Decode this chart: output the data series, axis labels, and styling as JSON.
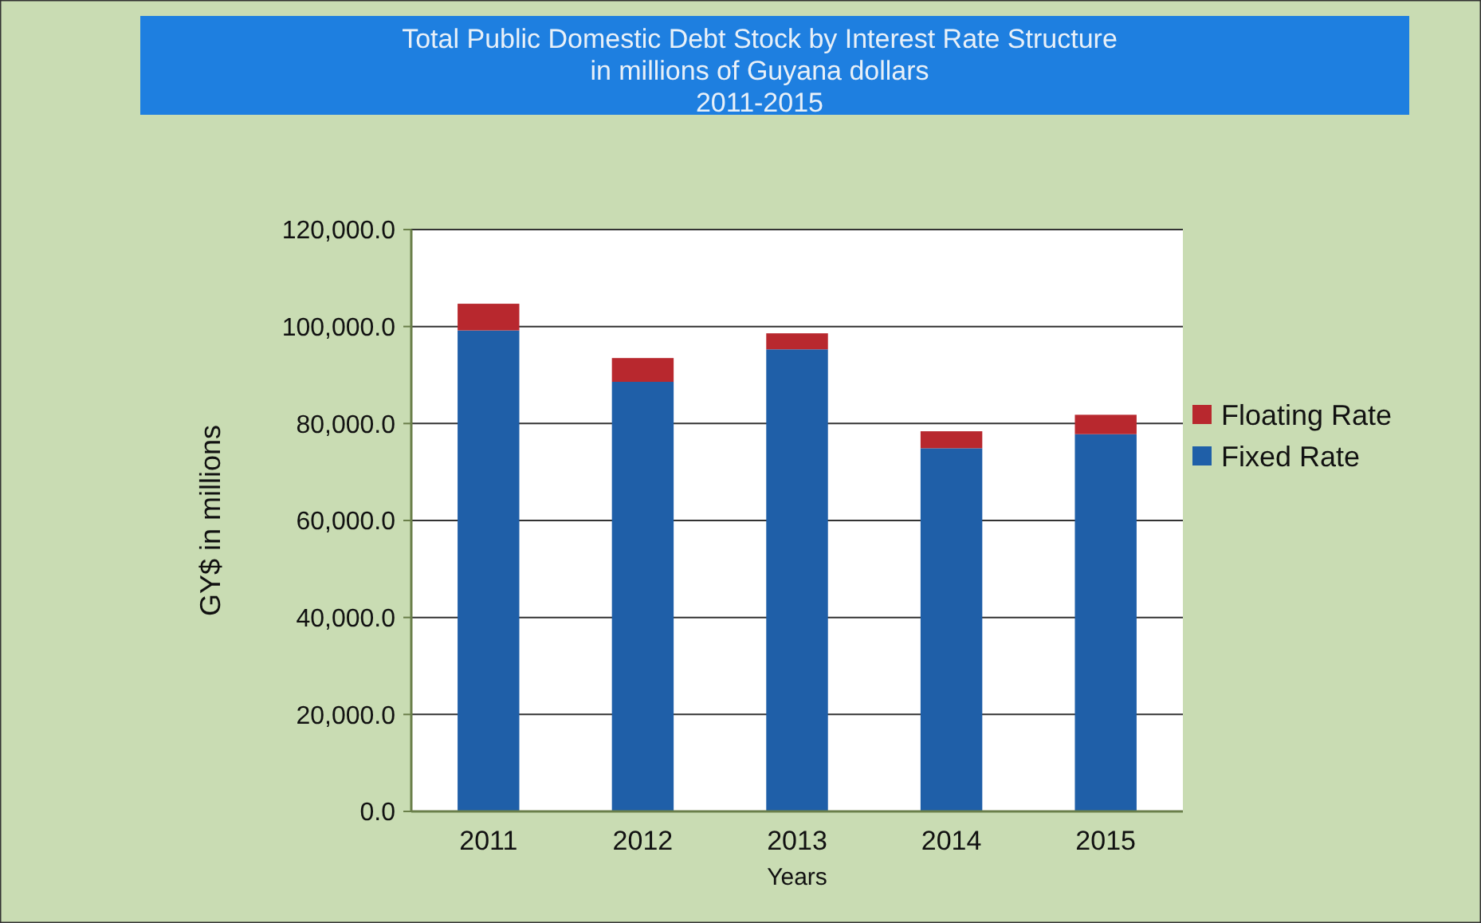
{
  "chart_data": {
    "type": "bar",
    "title": "Total Public Domestic Debt Stock by Interest Rate Structure\nin millions of Guyana dollars\n2011-2015",
    "xlabel": "Years",
    "ylabel": "GY$ in millions",
    "categories": [
      "2011",
      "2012",
      "2013",
      "2014",
      "2015"
    ],
    "stacked": true,
    "series": [
      {
        "name": "Fixed Rate",
        "color": "#1f5fa8",
        "values": [
          99200,
          88600,
          95300,
          74900,
          77800
        ]
      },
      {
        "name": "Floating Rate",
        "color": "#b8282e",
        "values": [
          5500,
          4900,
          3300,
          3500,
          4000
        ]
      }
    ],
    "ylim": [
      0,
      120000
    ],
    "yticks": [
      {
        "value": 0,
        "label": "0.0"
      },
      {
        "value": 20000,
        "label": "20,000.0"
      },
      {
        "value": 40000,
        "label": "40,000.0"
      },
      {
        "value": 60000,
        "label": "60,000.0"
      },
      {
        "value": 80000,
        "label": "80,000.0"
      },
      {
        "value": 100000,
        "label": "100,000.0"
      },
      {
        "value": 120000,
        "label": "120,000.0"
      }
    ],
    "grid": "y",
    "legend": "right"
  }
}
